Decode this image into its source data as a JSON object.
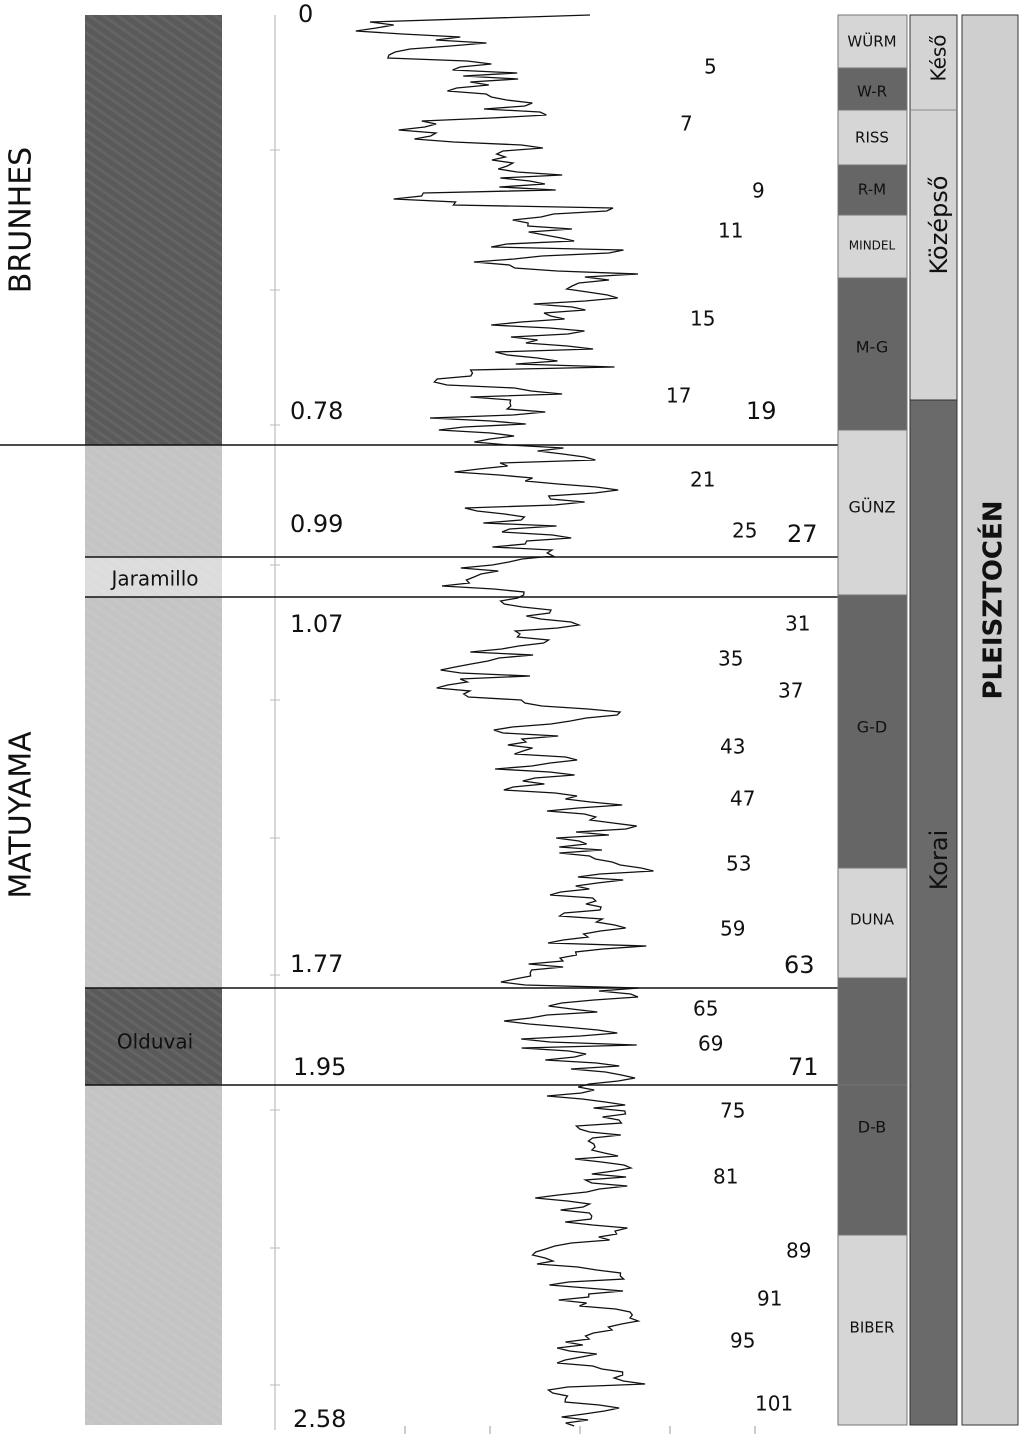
{
  "chrons": {
    "brunhes": "BRUNHES",
    "matuyama": "MATUYAMA",
    "jaramillo": "Jaramillo",
    "olduvai": "Olduvai"
  },
  "ages": [
    "0",
    "0.78",
    "0.99",
    "1.07",
    "1.77",
    "1.95",
    "2.58"
  ],
  "stages": [
    "5",
    "7",
    "9",
    "11",
    "15",
    "17",
    "19",
    "21",
    "25",
    "27",
    "31",
    "35",
    "37",
    "43",
    "47",
    "53",
    "59",
    "63",
    "65",
    "69",
    "71",
    "75",
    "81",
    "89",
    "91",
    "95",
    "101"
  ],
  "glacials": [
    "WÜRM",
    "W-R",
    "RISS",
    "R-M",
    "MINDEL",
    "M-G",
    "GÜNZ",
    "G-D",
    "DUNA",
    "D-B",
    "BIBER"
  ],
  "subdivisions": [
    "Késő",
    "Középső",
    "Korai"
  ],
  "epoch": "PLEISZTOCÉN"
}
